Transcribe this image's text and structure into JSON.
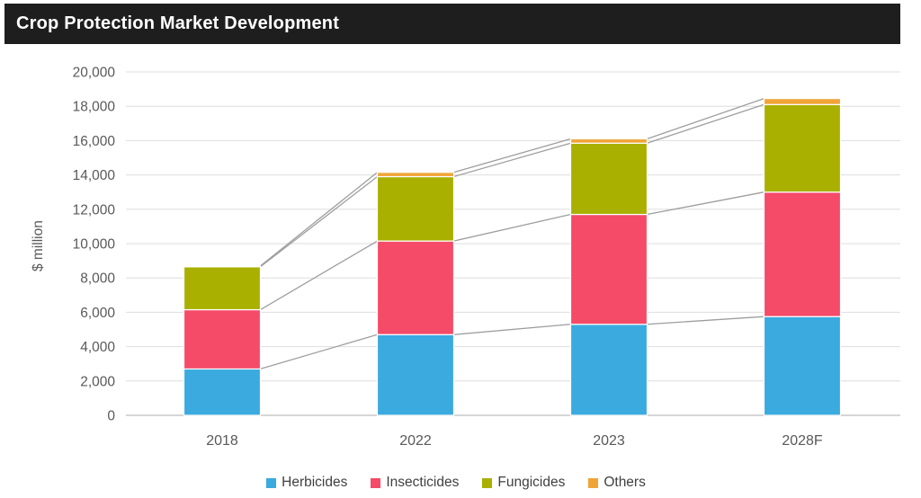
{
  "header": {
    "title": "Crop Protection Market Development"
  },
  "chart_data": {
    "type": "bar",
    "subtype": "stacked-column",
    "title": "Crop Protection Market Development",
    "categories": [
      "2018",
      "2022",
      "2023",
      "2028F"
    ],
    "series": [
      {
        "name": "Herbicides",
        "color": "#3AAADF",
        "values": [
          2700,
          4700,
          5300,
          5750
        ]
      },
      {
        "name": "Insecticides",
        "color": "#F54A68",
        "values": [
          3450,
          5450,
          6400,
          7250
        ]
      },
      {
        "name": "Fungicides",
        "color": "#A9B000",
        "values": [
          2500,
          3750,
          4150,
          5100
        ]
      },
      {
        "name": "Others",
        "color": "#F0A437",
        "values": [
          50,
          250,
          250,
          350
        ]
      }
    ],
    "totals": [
      8700,
      14150,
      16100,
      18450
    ],
    "xlabel": "",
    "ylabel": "$ million",
    "ylim": [
      0,
      20000
    ],
    "ytick_step": 2000,
    "yticks": [
      "0",
      "2,000",
      "4,000",
      "6,000",
      "8,000",
      "10,000",
      "12,000",
      "14,000",
      "16,000",
      "18,000",
      "20,000"
    ],
    "grid": true,
    "series_lines": true,
    "legend_position": "bottom",
    "colors": {
      "gridline": "#DEDEDE",
      "axis_line": "#C8C8C8",
      "series_line": "#9E9E9E",
      "tick_text": "#595959",
      "legend_text": "#404040",
      "title_bar_bg": "#1E1E1E",
      "title_text": "#FFFFFF"
    }
  }
}
